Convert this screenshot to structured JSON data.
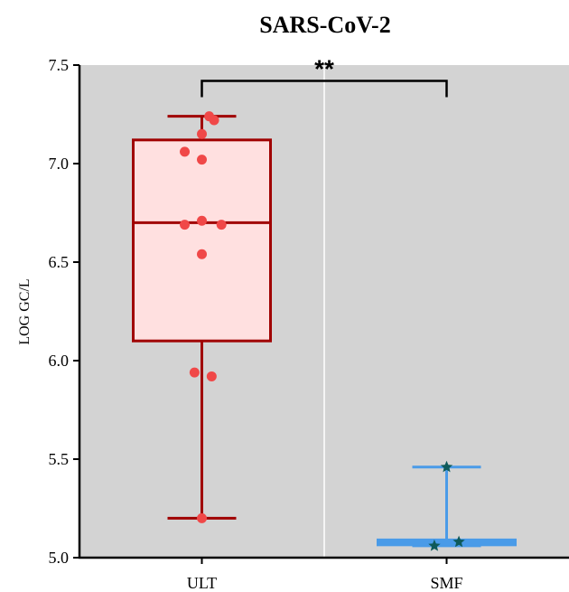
{
  "chart_data": {
    "type": "box",
    "title": "SARS-CoV-2",
    "xlabel": "",
    "ylabel": "LOG GC/L",
    "ylim": [
      5.0,
      7.5
    ],
    "yticks": [
      5.0,
      5.5,
      6.0,
      6.5,
      7.0,
      7.5
    ],
    "ytick_labels": [
      "5.0",
      "5.5",
      "6.0",
      "6.5",
      "7.0",
      "7.5"
    ],
    "categories": [
      "ULT",
      "SMF"
    ],
    "grid": false,
    "background": "#d3d3d3",
    "significance": {
      "label": "**",
      "between": [
        "ULT",
        "SMF"
      ],
      "y": 7.42
    },
    "boxes": [
      {
        "category": "ULT",
        "whisker_low": 5.2,
        "q1": 6.1,
        "median": 6.7,
        "q3": 7.12,
        "whisker_high": 7.24,
        "color": "#a00000",
        "fill": "#ffe0e0",
        "marker": "circle",
        "marker_color": "#f04848",
        "points": [
          {
            "x": 0.03,
            "y": 7.24
          },
          {
            "x": 0.05,
            "y": 7.22
          },
          {
            "x": 0.0,
            "y": 7.15
          },
          {
            "x": -0.07,
            "y": 7.06
          },
          {
            "x": 0.0,
            "y": 7.02
          },
          {
            "x": 0.0,
            "y": 6.71
          },
          {
            "x": -0.07,
            "y": 6.69
          },
          {
            "x": 0.08,
            "y": 6.69
          },
          {
            "x": 0.0,
            "y": 6.54
          },
          {
            "x": -0.03,
            "y": 5.94
          },
          {
            "x": 0.04,
            "y": 5.92
          },
          {
            "x": 0.0,
            "y": 5.2
          }
        ]
      },
      {
        "category": "SMF",
        "whisker_low": 5.06,
        "q1": 5.065,
        "median": 5.075,
        "q3": 5.09,
        "whisker_high": 5.46,
        "color": "#4a9be8",
        "fill": "#4a9be8",
        "marker": "star",
        "marker_color": "#0e5a5a",
        "points": [
          {
            "x": 0.0,
            "y": 5.46
          },
          {
            "x": -0.05,
            "y": 5.06
          },
          {
            "x": 0.05,
            "y": 5.08
          }
        ]
      }
    ]
  }
}
